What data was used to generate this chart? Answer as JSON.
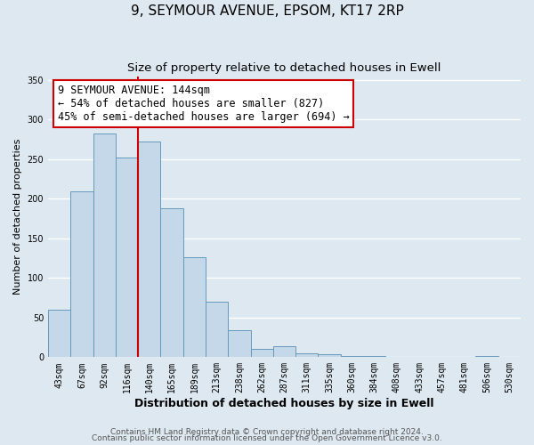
{
  "title": "9, SEYMOUR AVENUE, EPSOM, KT17 2RP",
  "subtitle": "Size of property relative to detached houses in Ewell",
  "xlabel": "Distribution of detached houses by size in Ewell",
  "ylabel": "Number of detached properties",
  "bar_labels": [
    "43sqm",
    "67sqm",
    "92sqm",
    "116sqm",
    "140sqm",
    "165sqm",
    "189sqm",
    "213sqm",
    "238sqm",
    "262sqm",
    "287sqm",
    "311sqm",
    "335sqm",
    "360sqm",
    "384sqm",
    "408sqm",
    "433sqm",
    "457sqm",
    "481sqm",
    "506sqm",
    "530sqm"
  ],
  "bar_values": [
    60,
    210,
    282,
    252,
    272,
    188,
    126,
    70,
    34,
    11,
    14,
    5,
    4,
    2,
    1,
    0,
    0,
    0,
    0,
    2,
    0
  ],
  "bar_color": "#c5d8ea",
  "bar_edge_color": "#6699bb",
  "vline_color": "#cc0000",
  "annotation_text": "9 SEYMOUR AVENUE: 144sqm\n← 54% of detached houses are smaller (827)\n45% of semi-detached houses are larger (694) →",
  "annotation_box_color": "#ffffff",
  "annotation_box_edge": "#cc0000",
  "ylim": [
    0,
    355
  ],
  "yticks": [
    0,
    50,
    100,
    150,
    200,
    250,
    300,
    350
  ],
  "footnote1": "Contains HM Land Registry data © Crown copyright and database right 2024.",
  "footnote2": "Contains public sector information licensed under the Open Government Licence v3.0.",
  "background_color": "#dde8f0",
  "plot_bg_color": "#dde8f0",
  "grid_color": "#ffffff",
  "title_fontsize": 11,
  "subtitle_fontsize": 9.5,
  "xlabel_fontsize": 9,
  "ylabel_fontsize": 8,
  "tick_fontsize": 7,
  "annotation_fontsize": 8.5,
  "footnote_fontsize": 6.5
}
